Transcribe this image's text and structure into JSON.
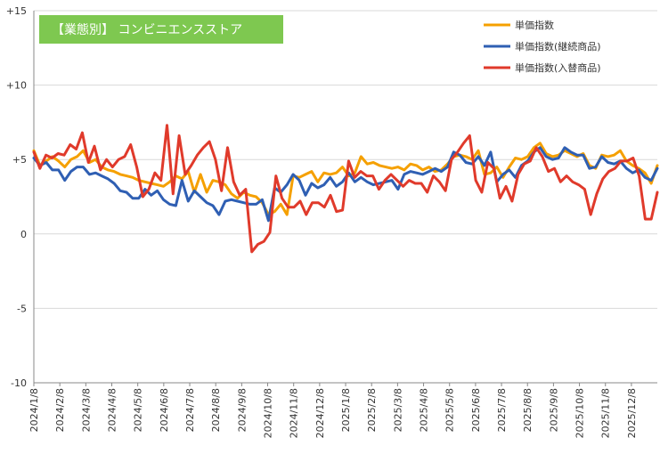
{
  "chart_data": {
    "type": "line",
    "title": "【業態別】 コンビニエンスストア",
    "title_bg": "#7ec850",
    "xlabel": "",
    "ylabel": "",
    "ylim": [
      -10,
      15
    ],
    "yticks": [
      15,
      10,
      5,
      0,
      -5,
      -10
    ],
    "ytick_labels": [
      "+15",
      "+10",
      "+5",
      "0",
      "-5",
      "-10"
    ],
    "grid": true,
    "legend_position": "top-right",
    "x_tick_labels": [
      "2024/1/8",
      "2024/2/8",
      "2024/3/8",
      "2024/4/8",
      "2024/5/8",
      "2024/6/8",
      "2024/7/8",
      "2024/8/8",
      "2024/9/8",
      "2024/10/8",
      "2024/11/8",
      "2024/12/8",
      "2025/1/8",
      "2025/2/8",
      "2025/3/8",
      "2025/4/8",
      "2025/5/8",
      "2025/6/8",
      "2025/7/8",
      "2025/8/8",
      "2025/9/8",
      "2025/10/8",
      "2025/11/8",
      "2025/12/8"
    ],
    "series": [
      {
        "name": "単価指数",
        "color": "#f5a000",
        "values": [
          5.6,
          4.6,
          4.9,
          5.2,
          4.9,
          4.5,
          5.0,
          5.2,
          5.6,
          4.8,
          5.0,
          4.5,
          4.3,
          4.2,
          4.0,
          3.9,
          3.8,
          3.6,
          3.5,
          3.4,
          3.3,
          3.2,
          3.5,
          3.9,
          3.7,
          4.2,
          2.8,
          4.0,
          2.8,
          3.6,
          3.5,
          3.3,
          2.7,
          2.4,
          2.8,
          2.6,
          2.5,
          2.1,
          1.3,
          1.5,
          2.0,
          1.3,
          3.9,
          3.8,
          4.0,
          4.2,
          3.5,
          4.1,
          4.0,
          4.1,
          4.5,
          3.9,
          4.1,
          5.2,
          4.7,
          4.8,
          4.6,
          4.5,
          4.4,
          4.5,
          4.3,
          4.7,
          4.6,
          4.3,
          4.5,
          4.2,
          4.3,
          4.7,
          5.2,
          5.3,
          5.2,
          5.0,
          5.6,
          4.0,
          4.1,
          4.5,
          3.8,
          4.5,
          5.1,
          5.0,
          5.2,
          5.8,
          6.1,
          5.4,
          5.2,
          5.3,
          5.6,
          5.4,
          5.2,
          5.4,
          4.6,
          4.4,
          5.3,
          5.2,
          5.3,
          5.6,
          4.9,
          4.6,
          4.4,
          4.1,
          3.4,
          4.6
        ],
        "legend_label": "単価指数"
      },
      {
        "name": "単価指数(継続商品)",
        "color": "#2f5fb3",
        "values": [
          5.1,
          4.6,
          4.8,
          4.3,
          4.3,
          3.6,
          4.2,
          4.5,
          4.5,
          4.0,
          4.1,
          3.9,
          3.7,
          3.4,
          2.9,
          2.8,
          2.4,
          2.4,
          3.0,
          2.6,
          2.9,
          2.3,
          2.0,
          1.9,
          3.6,
          2.2,
          2.9,
          2.5,
          2.1,
          1.9,
          1.3,
          2.2,
          2.3,
          2.2,
          2.1,
          2.0,
          2.0,
          2.3,
          0.9,
          3.1,
          2.8,
          3.3,
          4.0,
          3.6,
          2.6,
          3.4,
          3.1,
          3.3,
          3.8,
          3.2,
          3.5,
          4.1,
          3.5,
          3.8,
          3.5,
          3.3,
          3.4,
          3.5,
          3.6,
          3.0,
          4.0,
          4.2,
          4.1,
          4.0,
          4.2,
          4.4,
          4.2,
          4.5,
          5.5,
          5.3,
          4.8,
          4.7,
          5.2,
          4.6,
          5.5,
          3.5,
          4.0,
          4.3,
          3.8,
          4.6,
          4.9,
          5.5,
          5.8,
          5.2,
          5.0,
          5.1,
          5.8,
          5.5,
          5.3,
          5.3,
          4.4,
          4.5,
          5.2,
          4.8,
          4.7,
          4.9,
          4.4,
          4.1,
          4.3,
          3.8,
          3.6,
          4.4
        ],
        "legend_label": "単価指数(継続商品)"
      },
      {
        "name": "単価指数(入替商品)",
        "color": "#e03a2b",
        "values": [
          5.5,
          4.4,
          5.3,
          5.1,
          5.4,
          5.3,
          6.0,
          5.7,
          6.8,
          4.8,
          5.9,
          4.3,
          5.0,
          4.5,
          5.0,
          5.2,
          6.0,
          4.5,
          2.5,
          3.0,
          4.1,
          3.6,
          7.3,
          2.7,
          6.6,
          4.0,
          4.6,
          5.3,
          5.8,
          6.2,
          5.0,
          2.9,
          5.8,
          3.5,
          2.6,
          3.0,
          -1.2,
          -0.7,
          -0.5,
          0.1,
          3.9,
          2.4,
          1.8,
          1.8,
          2.2,
          1.3,
          2.1,
          2.1,
          1.8,
          2.6,
          1.5,
          1.6,
          4.9,
          3.8,
          4.2,
          3.9,
          3.9,
          3.0,
          3.6,
          4.0,
          3.6,
          3.2,
          3.6,
          3.4,
          3.4,
          2.8,
          3.9,
          3.5,
          2.9,
          5.0,
          5.5,
          6.1,
          6.6,
          3.6,
          2.8,
          4.8,
          4.4,
          2.4,
          3.2,
          2.2,
          4.0,
          4.7,
          4.9,
          5.8,
          5.2,
          4.2,
          4.4,
          3.5,
          3.9,
          3.5,
          3.3,
          3.0,
          1.3,
          2.7,
          3.7,
          4.2,
          4.4,
          4.9,
          4.9,
          5.1,
          3.9,
          1.0,
          1.0,
          2.8
        ],
        "legend_label": "単価指数(入替商品)"
      }
    ]
  }
}
